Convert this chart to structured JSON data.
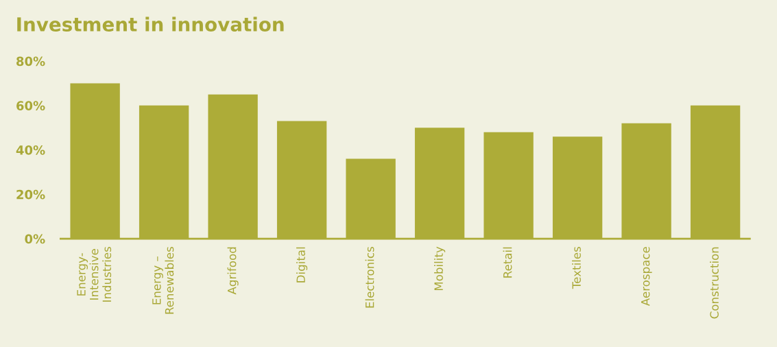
{
  "chart_data": {
    "type": "bar",
    "title": "Investment in innovation",
    "categories": [
      "Energy-\nIntensive\nIndustries",
      "Energy –\nRenewables",
      "Agrifood",
      "Digital",
      "Electronics",
      "Mobility",
      "Retail",
      "Textiles",
      "Aerospace",
      "Construction"
    ],
    "values": [
      70,
      60,
      65,
      53,
      36,
      50,
      48,
      46,
      52,
      60
    ],
    "color": "#adac38",
    "ylim": [
      0,
      80
    ],
    "yticks": [
      {
        "value": 0,
        "label": "0%"
      },
      {
        "value": 20,
        "label": "20%"
      },
      {
        "value": 40,
        "label": "40%"
      },
      {
        "value": 60,
        "label": "60%"
      },
      {
        "value": 80,
        "label": "80%"
      }
    ],
    "grid": false,
    "legend": false
  }
}
